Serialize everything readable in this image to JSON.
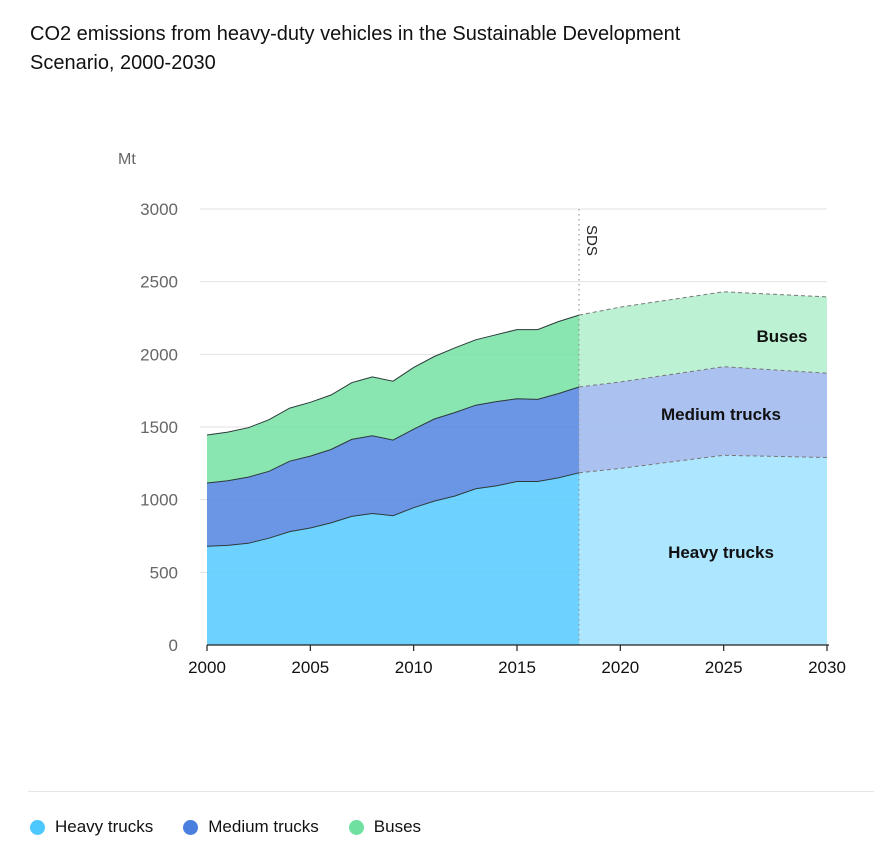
{
  "chart_data": {
    "type": "area",
    "title_lines": [
      "CO2 emissions from heavy-duty vehicles in the Sustainable Development",
      "Scenario, 2000-2030"
    ],
    "ylabel": "Mt",
    "ylim": [
      0,
      3000
    ],
    "xlim": [
      2000,
      2030
    ],
    "y_ticks": [
      0,
      500,
      1000,
      1500,
      2000,
      2500,
      3000
    ],
    "y_tick_labels": [
      "0",
      "500",
      "1000",
      "1500",
      "2000",
      "2500",
      "3000"
    ],
    "x_ticks": [
      2000,
      2005,
      2010,
      2015,
      2020,
      2025,
      2030
    ],
    "x_tick_labels": [
      "2000",
      "2005",
      "2010",
      "2015",
      "2020",
      "2025",
      "2030"
    ],
    "stacked": true,
    "grid": true,
    "marker": {
      "x": 2018,
      "label": "SDS"
    },
    "x_historical": [
      2000,
      2001,
      2002,
      2003,
      2004,
      2005,
      2006,
      2007,
      2008,
      2009,
      2010,
      2011,
      2012,
      2013,
      2014,
      2015,
      2016,
      2017,
      2018
    ],
    "x_projection": [
      2018,
      2020,
      2025,
      2030
    ],
    "series": [
      {
        "name": "Heavy trucks",
        "color": "#4dc8ff",
        "projection_color": "#a9e5ff",
        "historical": [
          680,
          685,
          700,
          735,
          780,
          805,
          840,
          885,
          905,
          890,
          945,
          990,
          1025,
          1075,
          1095,
          1125,
          1125,
          1150,
          1185
        ],
        "projection": [
          1185,
          1215,
          1305,
          1290
        ]
      },
      {
        "name": "Medium trucks",
        "color": "#4b7fdf",
        "projection_color": "#a6bff0",
        "historical": [
          435,
          445,
          455,
          460,
          485,
          495,
          505,
          530,
          535,
          520,
          540,
          565,
          575,
          575,
          580,
          570,
          565,
          580,
          590
        ],
        "projection": [
          590,
          595,
          610,
          580
        ]
      },
      {
        "name": "Buses",
        "color": "#6fe0a0",
        "projection_color": "#b8f0d2",
        "historical": [
          330,
          335,
          340,
          355,
          365,
          370,
          375,
          390,
          405,
          405,
          425,
          430,
          445,
          450,
          460,
          475,
          480,
          495,
          495
        ],
        "projection": [
          495,
          515,
          515,
          525
        ]
      }
    ],
    "annotations": [
      "Buses",
      "Medium trucks",
      "Heavy trucks"
    ],
    "legend": [
      "Heavy trucks",
      "Medium trucks",
      "Buses"
    ],
    "legend_position": "bottom-left"
  }
}
